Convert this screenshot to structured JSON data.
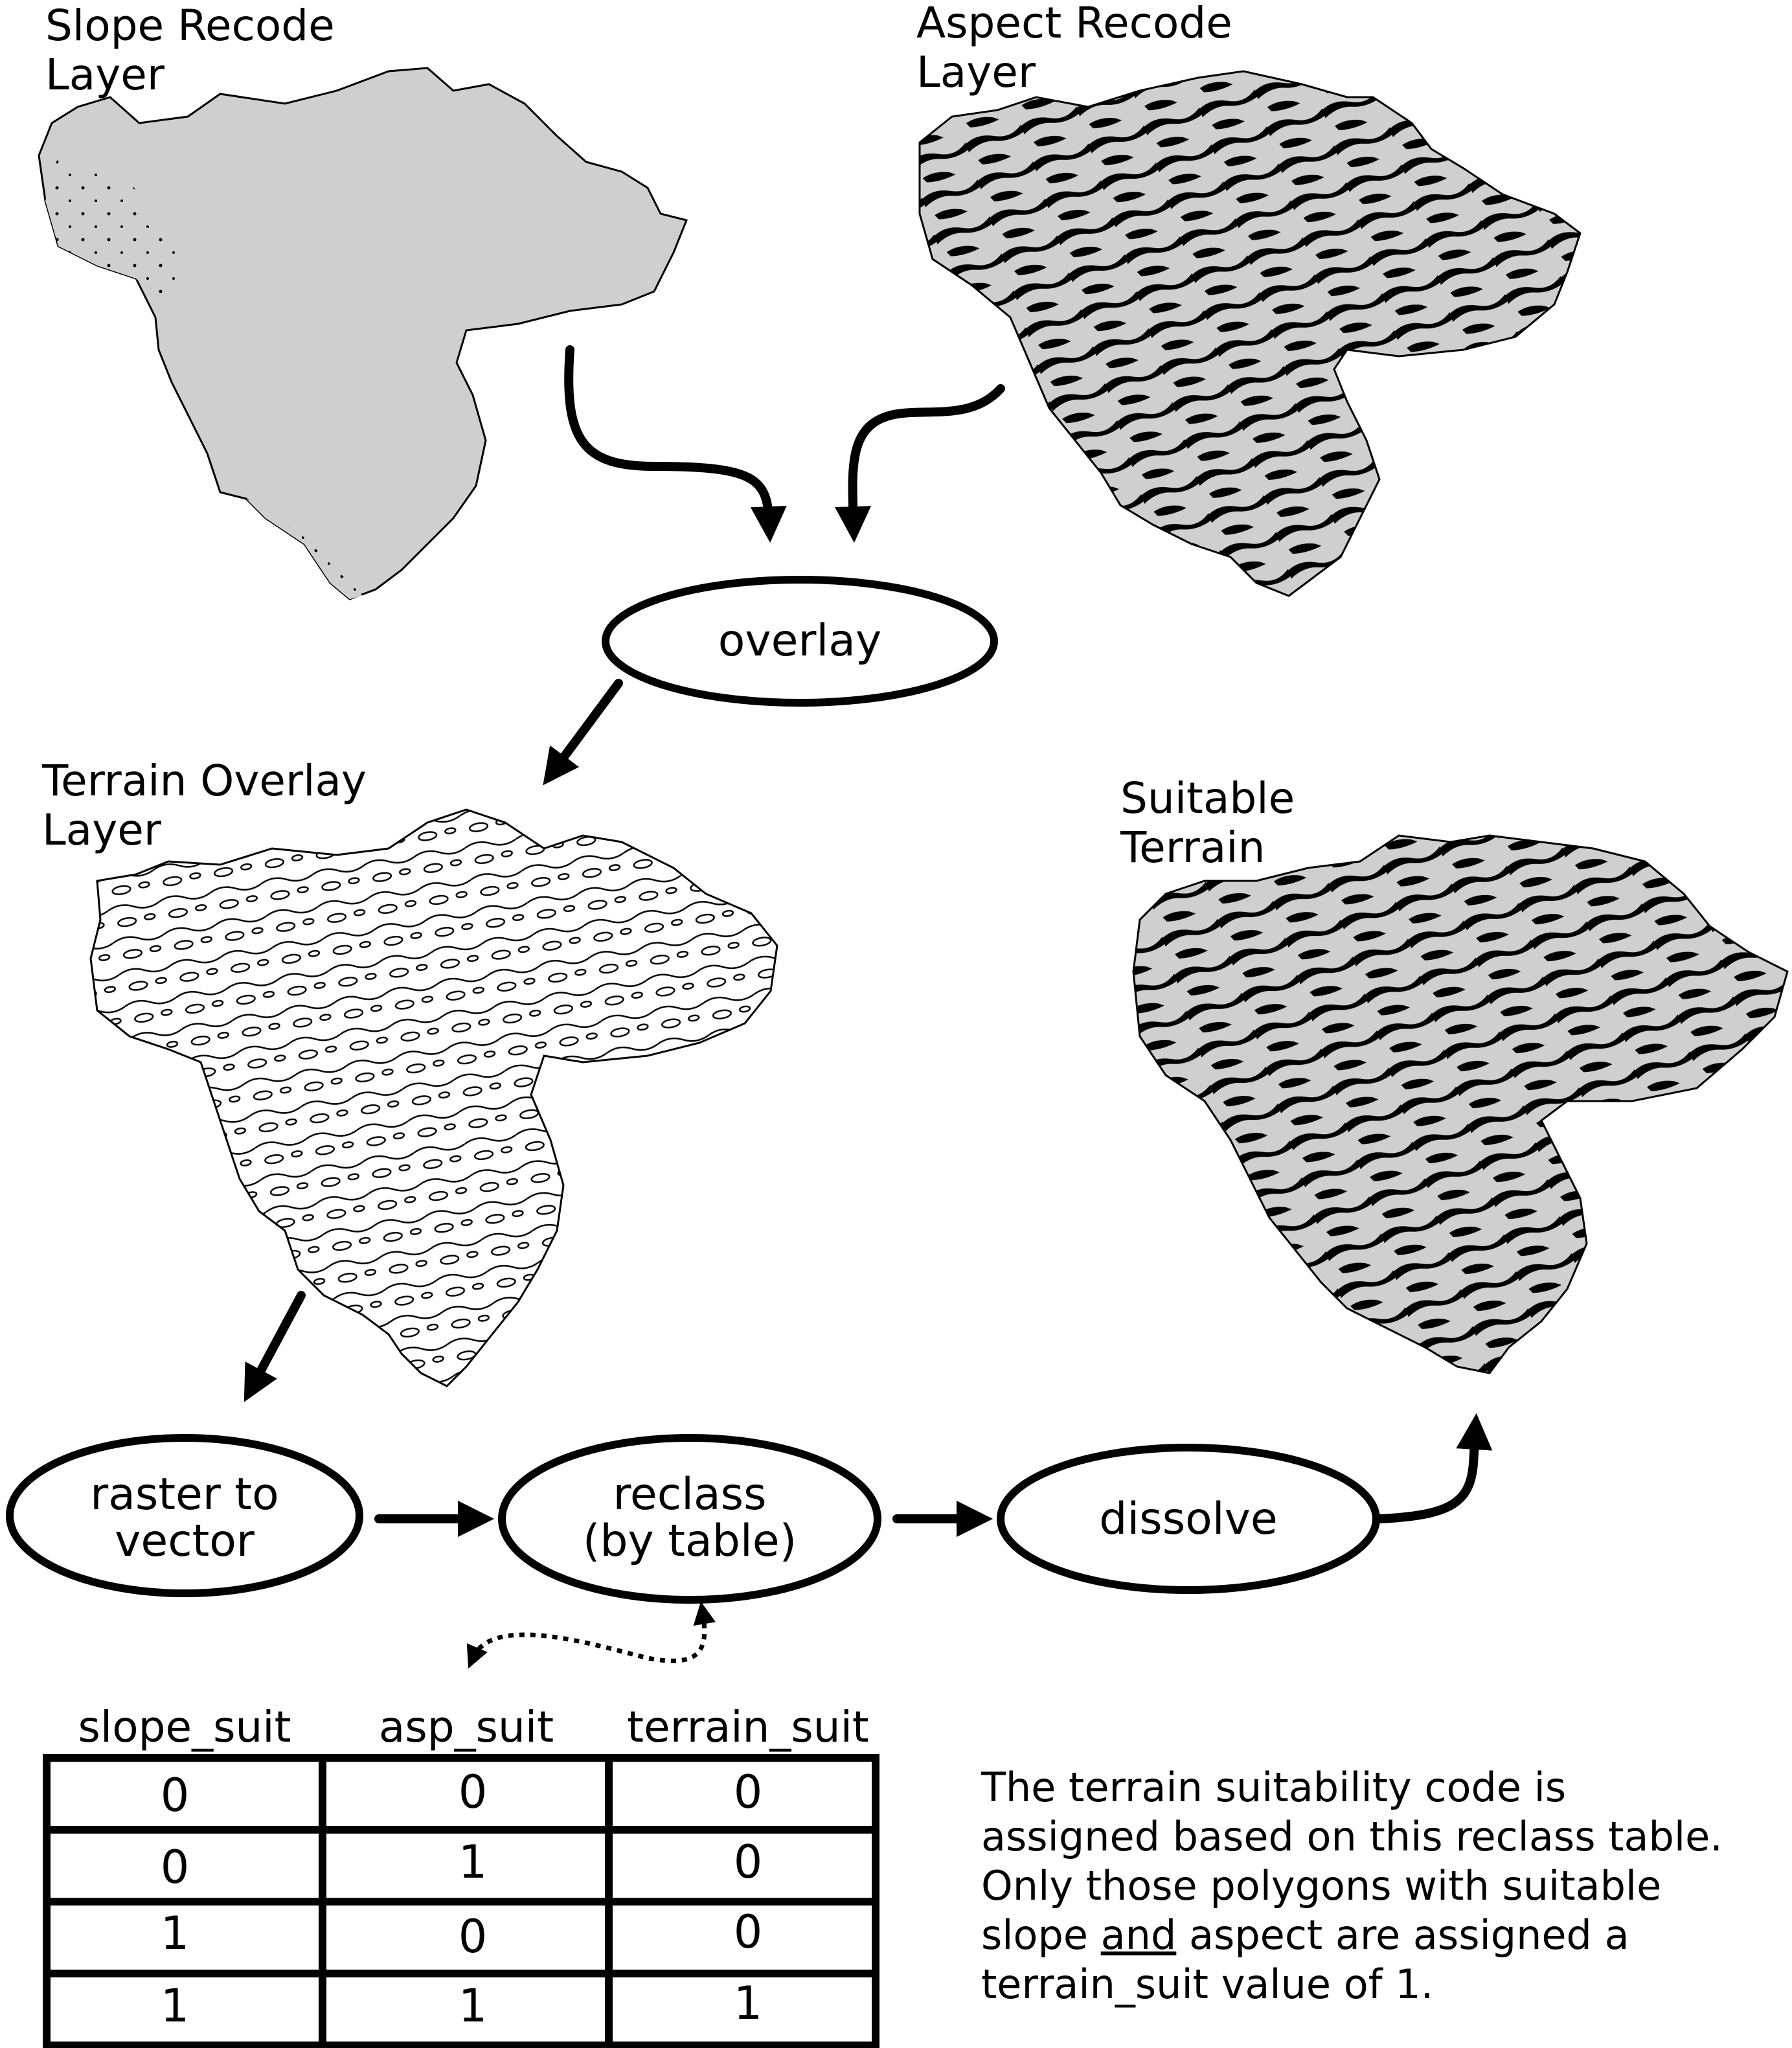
{
  "layers": {
    "slope": {
      "line1": "Slope Recode",
      "line2": "Layer"
    },
    "aspect": {
      "line1": "Aspect Recode",
      "line2": "Layer"
    },
    "terrain_overlay": {
      "line1": "Terrain Overlay",
      "line2": "Layer"
    },
    "suitable": {
      "line1": "Suitable",
      "line2": "Terrain"
    }
  },
  "nodes": {
    "overlay": "overlay",
    "raster_to_vector": {
      "line1": "raster to",
      "line2": "vector"
    },
    "reclass": {
      "line1": "reclass",
      "line2": "(by table)"
    },
    "dissolve": "dissolve"
  },
  "table": {
    "headers": [
      "slope_suit",
      "asp_suit",
      "terrain_suit"
    ],
    "rows": [
      [
        "0",
        "0",
        "0"
      ],
      [
        "0",
        "1",
        "0"
      ],
      [
        "1",
        "0",
        "0"
      ],
      [
        "1",
        "1",
        "1"
      ]
    ]
  },
  "note": {
    "part1": "The terrain suitability code is assigned based on this reclass table. Only those polygons with suitable slope ",
    "underlined": "and",
    "part2": " aspect are assigned a terrain_suit value of 1."
  },
  "colors": {
    "ink": "#000000",
    "map_fill": "#cfcfcf",
    "background": "#ffffff"
  }
}
